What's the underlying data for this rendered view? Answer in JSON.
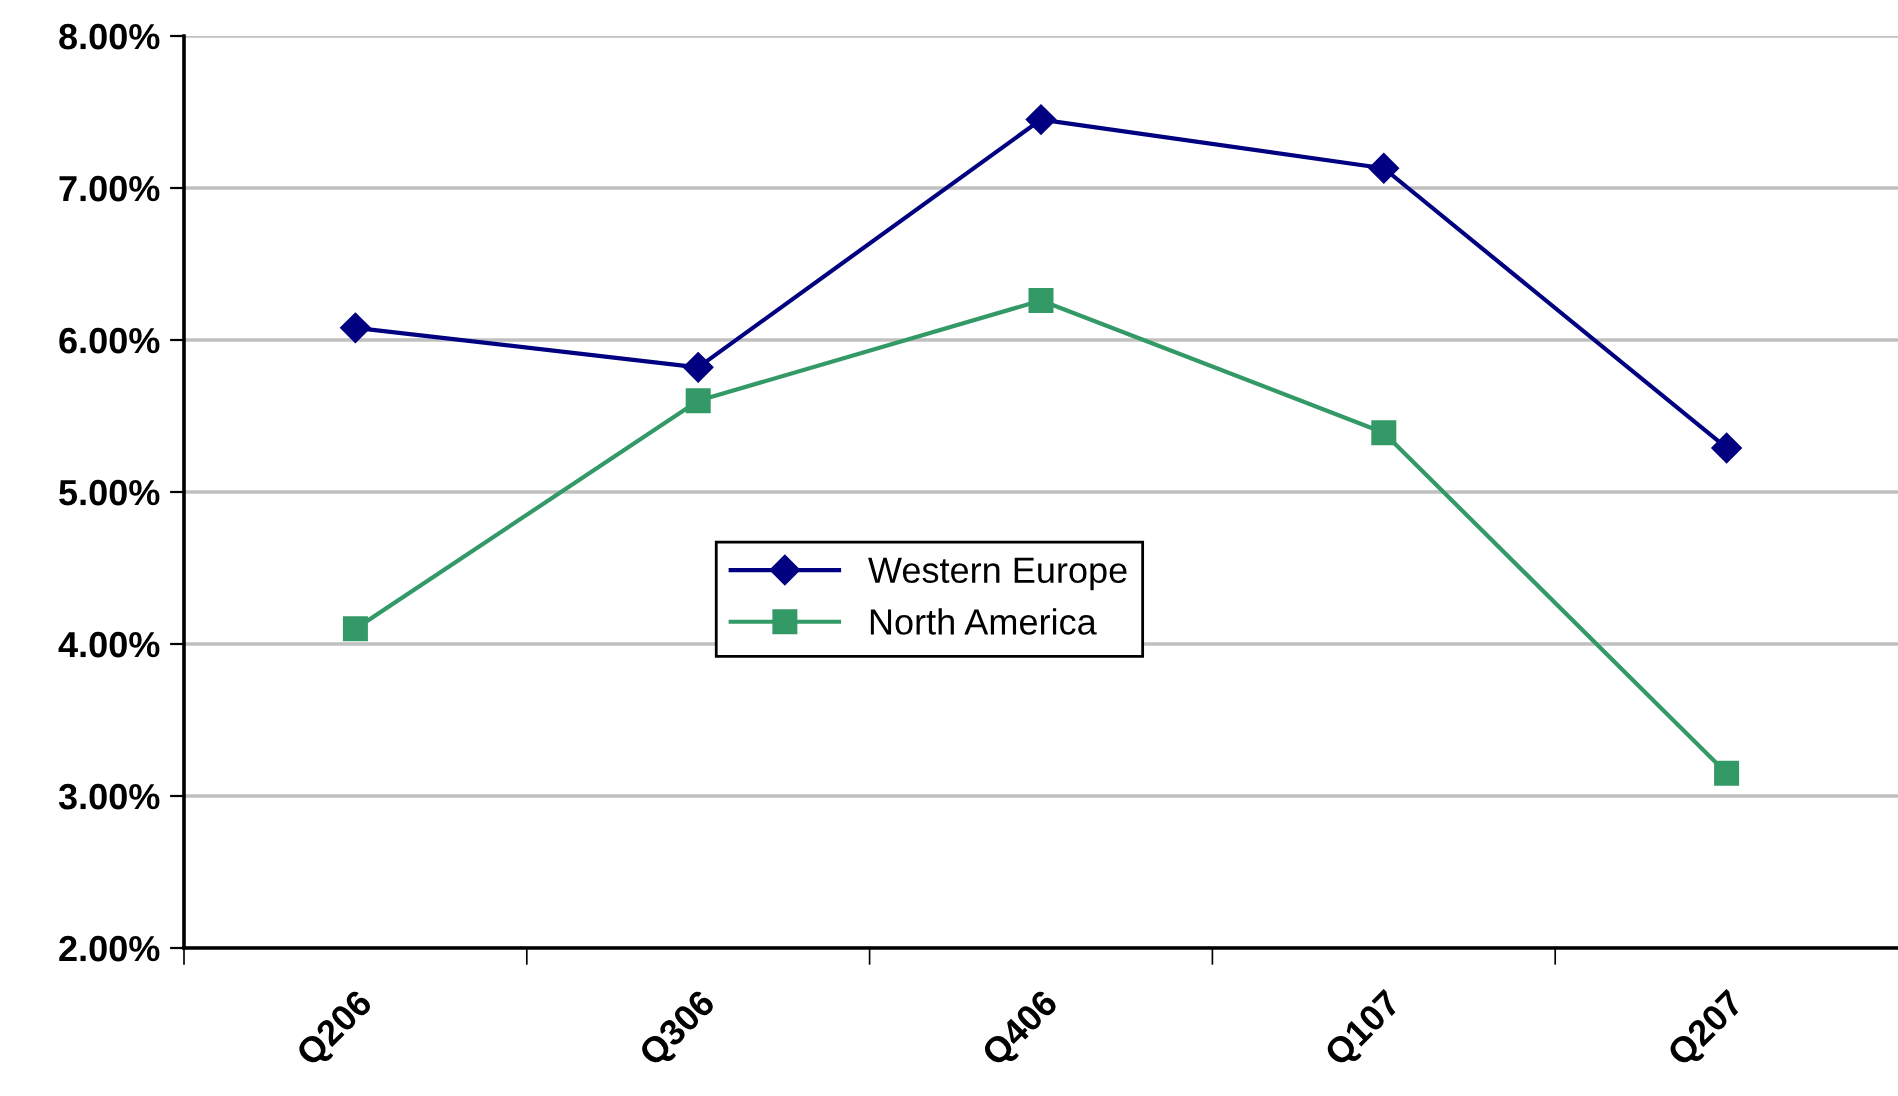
{
  "chart_data": {
    "type": "line",
    "categories": [
      "Q206",
      "Q306",
      "Q406",
      "Q107",
      "Q207"
    ],
    "series": [
      {
        "name": "Western Europe",
        "color": "#000080",
        "marker": "diamond",
        "values": [
          6.08,
          5.82,
          7.45,
          7.13,
          5.29
        ]
      },
      {
        "name": "North America",
        "color": "#339966",
        "marker": "square",
        "values": [
          4.1,
          5.6,
          6.26,
          5.39,
          3.15
        ]
      }
    ],
    "ylim": [
      2,
      8
    ],
    "yticks": [
      {
        "value": 2,
        "label": "2.00%"
      },
      {
        "value": 3,
        "label": "3.00%"
      },
      {
        "value": 4,
        "label": "4.00%"
      },
      {
        "value": 5,
        "label": "5.00%"
      },
      {
        "value": 6,
        "label": "6.00%"
      },
      {
        "value": 7,
        "label": "7.00%"
      },
      {
        "value": 8,
        "label": "8.00%"
      }
    ],
    "grid": "y",
    "legend": "center",
    "line_style": "solid"
  }
}
